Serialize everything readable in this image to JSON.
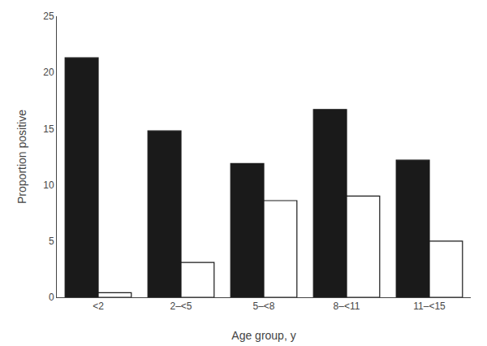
{
  "chart_data": {
    "type": "bar",
    "categories": [
      "<2",
      "2–<5",
      "5–<8",
      "8–<11",
      "11–<15"
    ],
    "series": [
      {
        "color": "#1a1a1a",
        "values": [
          21.3,
          14.8,
          11.9,
          16.7,
          12.2
        ]
      },
      {
        "color": "#ffffff",
        "values": [
          0.4,
          3.1,
          8.6,
          9.0,
          5.0
        ]
      }
    ],
    "xlabel": "Age group, y",
    "ylabel": "Proportion positive",
    "ylim": [
      0,
      25
    ],
    "yticks": [
      0,
      5,
      10,
      15,
      20,
      25
    ],
    "grid": false
  }
}
